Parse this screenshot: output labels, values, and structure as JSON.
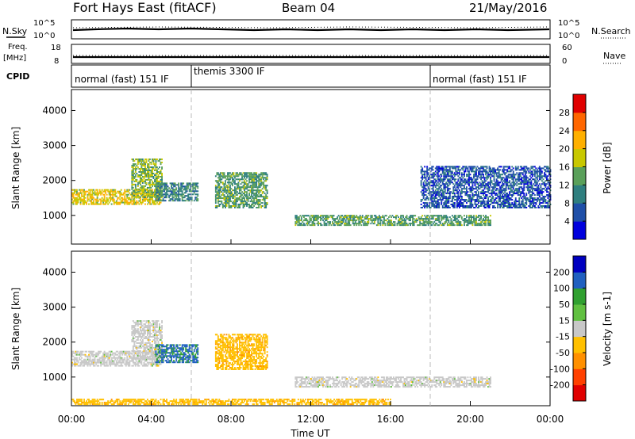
{
  "header": {
    "title": "Fort Hays East (fitACF)",
    "beam": "Beam 04",
    "date": "21/May/2016"
  },
  "summary": {
    "nsky_label": "N.Sky",
    "nsky_ticks": [
      "10^5",
      "10^0"
    ],
    "nsearch_label": "N.Search",
    "nsearch_ticks": [
      "10^5",
      "10^0"
    ],
    "freq_label": "Freq.",
    "freq_unit": "[MHz]",
    "freq_ticks": [
      "18",
      "8"
    ],
    "nave_label": "Nave",
    "nave_ticks": [
      "60",
      "0"
    ],
    "cpid_label": "CPID",
    "modes": [
      {
        "label": "normal (fast) 151 IF",
        "start": 0,
        "end": 6
      },
      {
        "label": "themis 3300 IF",
        "start": 6,
        "end": 18
      },
      {
        "label": "normal (fast) 151 IF",
        "start": 18,
        "end": 24
      }
    ]
  },
  "chart_data": [
    {
      "type": "heatmap",
      "name": "power",
      "ylabel": "Slant Range [km]",
      "yticks": [
        "4000",
        "3000",
        "2000",
        "1000"
      ],
      "ylim": [
        180,
        4600
      ],
      "xlim": [
        0,
        24
      ],
      "colorbar_label": "Power [dB]",
      "colorbar_ticks": [
        "28",
        "24",
        "20",
        "16",
        "12",
        "8",
        "4"
      ],
      "colorbar_range": [
        0,
        30
      ],
      "colors": [
        "#0000dd",
        "#1f4fa8",
        "#2f7f7f",
        "#5aa05a",
        "#c8c800",
        "#ffb000",
        "#ff6600",
        "#e00000"
      ],
      "echo_regions": [
        {
          "start": 0,
          "end": 4.5,
          "range_from": 1300,
          "range_to": 1750,
          "value": 18
        },
        {
          "start": 3,
          "end": 4.5,
          "range_from": 1500,
          "range_to": 2600,
          "value": 14
        },
        {
          "start": 4.2,
          "end": 6.3,
          "range_from": 1400,
          "range_to": 1900,
          "value": 10
        },
        {
          "start": 7.2,
          "end": 9.8,
          "range_from": 1200,
          "range_to": 2200,
          "value": 12
        },
        {
          "start": 11.2,
          "end": 21,
          "range_from": 700,
          "range_to": 1000,
          "value": 12
        },
        {
          "start": 17.5,
          "end": 24,
          "range_from": 1200,
          "range_to": 2400,
          "value": 6
        }
      ]
    },
    {
      "type": "heatmap",
      "name": "velocity",
      "ylabel": "Slant Range [km]",
      "yticks": [
        "4000",
        "3000",
        "2000",
        "1000"
      ],
      "ylim": [
        180,
        4600
      ],
      "xlim": [
        0,
        24
      ],
      "xlabel": "Time UT",
      "xticks": [
        "00:00",
        "04:00",
        "08:00",
        "12:00",
        "16:00",
        "20:00",
        "00:00"
      ],
      "colorbar_label": "Velocity [m s-1]",
      "colorbar_ticks": [
        "200",
        "100",
        "50",
        "15",
        "-15",
        "-50",
        "-100",
        "-200"
      ],
      "colorbar_range": [
        -250,
        250
      ],
      "colors": [
        "#e00000",
        "#ff4000",
        "#ff9000",
        "#ffc000",
        "#c8c8c8",
        "#60c040",
        "#30a030",
        "#2060c0",
        "#0000c0"
      ],
      "echo_regions": [
        {
          "start": 0,
          "end": 4.5,
          "range_from": 1300,
          "range_to": 1750,
          "value": 0
        },
        {
          "start": 3,
          "end": 4.5,
          "range_from": 1500,
          "range_to": 2600,
          "value": 0
        },
        {
          "start": 4.2,
          "end": 6.3,
          "range_from": 1400,
          "range_to": 1900,
          "value": 150
        },
        {
          "start": 7.2,
          "end": 9.8,
          "range_from": 1200,
          "range_to": 2200,
          "value": -60
        },
        {
          "start": 11.2,
          "end": 21,
          "range_from": 700,
          "range_to": 1000,
          "value": 0
        },
        {
          "start": 0,
          "end": 16,
          "range_from": 200,
          "range_to": 350,
          "value": -60
        }
      ]
    }
  ]
}
